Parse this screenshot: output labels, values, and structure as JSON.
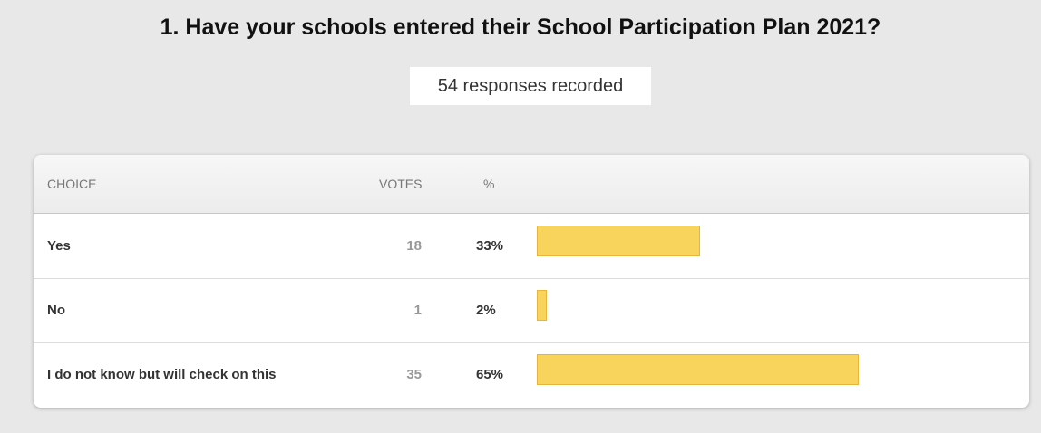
{
  "title": "1. Have your schools entered their School Participation Plan 2021?",
  "summary": "54 responses recorded",
  "table": {
    "headers": [
      "CHOICE",
      "VOTES",
      "%"
    ],
    "bar_color": "#f9d45c",
    "rows": [
      {
        "choice": "Yes",
        "votes": 18,
        "percent": 33,
        "percent_label": "33%"
      },
      {
        "choice": "No",
        "votes": 1,
        "percent": 2,
        "percent_label": "2%"
      },
      {
        "choice": "I do not know but will check on this",
        "votes": 35,
        "percent": 65,
        "percent_label": "65%"
      }
    ]
  }
}
